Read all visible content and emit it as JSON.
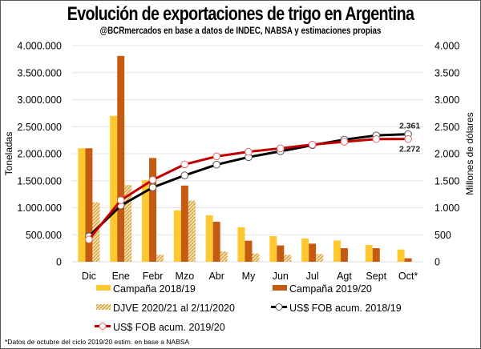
{
  "chart_data": {
    "type": "bar",
    "title": "Evolución de exportaciones de trigo en Argentina",
    "subtitle": "@BCRmercados en base a datos de INDEC, NABSA y estimaciones propias",
    "ylabel": "Toneladas",
    "y2label": "Millones de dólares",
    "ylim": [
      0,
      4000000
    ],
    "y2lim": [
      0,
      4000
    ],
    "yticks": [
      "0",
      "500.000",
      "1.000.000",
      "1.500.000",
      "2.000.000",
      "2.500.000",
      "3.000.000",
      "3.500.000",
      "4.000.000"
    ],
    "y2ticks": [
      "0",
      "500",
      "1.000",
      "1.500",
      "2.000",
      "2.500",
      "3.000",
      "3.500",
      "4.000"
    ],
    "grid": true,
    "categories": [
      "Dic",
      "Ene",
      "Febr",
      "Mzo",
      "Abr",
      "My",
      "Jun",
      "Jul",
      "Agt",
      "Sept",
      "Oct*"
    ],
    "series": [
      {
        "name": "Campaña 2018/19",
        "kind": "bar",
        "axis": "left",
        "color": "#FFC82E",
        "values": [
          2100000,
          2700000,
          1510000,
          950000,
          860000,
          640000,
          475000,
          430000,
          394000,
          310000,
          227000
        ]
      },
      {
        "name": "Campaña 2019/20",
        "kind": "bar",
        "axis": "left",
        "color": "#C55A11",
        "values": [
          2100000,
          3810000,
          1920000,
          1410000,
          740000,
          390000,
          302000,
          335000,
          251000,
          251000,
          64000
        ]
      },
      {
        "name": "DJVE 2020/21 al 2/11/2020",
        "kind": "bar-hatched",
        "axis": "left",
        "color": "#D9A441",
        "values": [
          1100000,
          1420000,
          130000,
          1130000,
          190000,
          153000,
          129000,
          143000,
          null,
          null,
          null
        ]
      },
      {
        "name": "US$ FOB acum. 2018/19",
        "kind": "line",
        "axis": "right",
        "color": "#000000",
        "values": [
          470,
          1040,
          1376,
          1599,
          1797,
          1936,
          2045,
          2158,
          2260,
          2338,
          2361
        ]
      },
      {
        "name": "US$ FOB acum. 2019/20",
        "kind": "line",
        "axis": "right",
        "color": "#C00000",
        "values": [
          411,
          1139,
          1515,
          1802,
          1950,
          2035,
          2099,
          2168,
          2221,
          2270,
          2272
        ]
      }
    ],
    "annotations": [
      {
        "series": "US$ FOB acum. 2018/19",
        "category": "Oct*",
        "text": "2.361",
        "position": "above"
      },
      {
        "series": "US$ FOB acum. 2019/20",
        "category": "Oct*",
        "text": "2.272",
        "position": "below"
      }
    ],
    "legend": {
      "placement": "bottom",
      "items": [
        "Campaña 2018/19",
        "Campaña 2019/20",
        "DJVE 2020/21 al 2/11/2020",
        "US$ FOB acum. 2018/19",
        "US$ FOB acum. 2019/20"
      ]
    },
    "footnote": "*Datos de octubre del ciclo 2019/20  estim. en base a NABSA"
  }
}
